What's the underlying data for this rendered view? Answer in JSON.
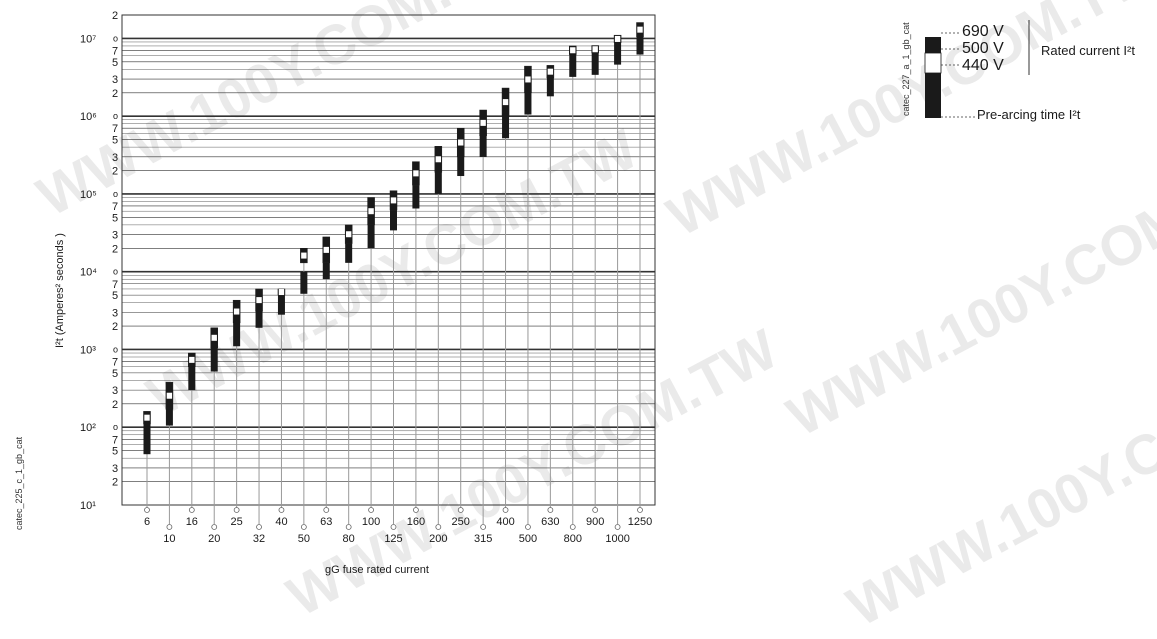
{
  "watermark": "WWW.100Y.COM.TW",
  "chart_code": "catec_225_c_1_gb_cat",
  "legend_code": "catec_227_a_1_gb_cat",
  "colors": {
    "bar_fill": "#1a1a1a",
    "bar_gap": "#ffffff",
    "grid": "#333333",
    "stem": "#999999"
  },
  "legend": {
    "v690": "690 V",
    "v500": "500 V",
    "v440": "440 V",
    "rated": "Rated current I²t",
    "prearc": "Pre-arcing time I²t"
  },
  "chart_data": {
    "type": "bar",
    "xlabel": "gG fuse rated current",
    "ylabel": "I²t (Amperes² seconds )",
    "yscale": "log",
    "ylim": [
      10,
      20000000
    ],
    "y_decade_labels": [
      "10¹",
      "10²",
      "10³",
      "10⁴",
      "10⁵",
      "10⁶",
      "10⁷"
    ],
    "y_minor_labels": [
      "2",
      "3",
      "5",
      "7"
    ],
    "categories": [
      "6",
      "10",
      "16",
      "20",
      "25",
      "32",
      "40",
      "50",
      "63",
      "80",
      "100",
      "125",
      "160",
      "200",
      "250",
      "315",
      "400",
      "500",
      "630",
      "800",
      "900",
      "1000",
      "1250"
    ],
    "series": [
      {
        "name": "Pre-arcing time I²t",
        "values": [
          [
            45,
            110
          ],
          [
            105,
            300
          ],
          [
            300,
            650
          ],
          [
            520,
            1100
          ],
          [
            1100,
            2300
          ],
          [
            1900,
            3200
          ],
          [
            2800,
            5100
          ],
          [
            5200,
            10000
          ],
          [
            8000,
            13000
          ],
          [
            13000,
            23000
          ],
          [
            20000,
            40000
          ],
          [
            34000,
            62000
          ],
          [
            65000,
            130000
          ],
          [
            100000,
            190000
          ],
          [
            170000,
            310000
          ],
          [
            300000,
            600000
          ],
          [
            520000,
            1050000
          ],
          [
            1050000,
            2000000
          ],
          [
            1800000,
            3200000
          ],
          [
            3200000,
            6500000
          ],
          [
            3400000,
            6800000
          ],
          [
            4600000,
            8800000
          ],
          [
            6200000,
            10500000
          ]
        ]
      },
      {
        "name": "Rated current I²t",
        "values": [
          [
            110,
            160
          ],
          [
            170,
            380
          ],
          [
            600,
            900
          ],
          [
            1050,
            1900
          ],
          [
            2200,
            4300
          ],
          [
            3100,
            6000
          ],
          [
            5000,
            6000
          ],
          [
            13000,
            20000
          ],
          [
            13000,
            28000
          ],
          [
            23000,
            40000
          ],
          [
            40000,
            90000
          ],
          [
            62000,
            110000
          ],
          [
            130000,
            260000
          ],
          [
            190000,
            410000
          ],
          [
            300000,
            700000
          ],
          [
            560000,
            1200000
          ],
          [
            1000000,
            2300000
          ],
          [
            2000000,
            4400000
          ],
          [
            3100000,
            4500000
          ],
          [
            6200000,
            8000000
          ],
          [
            6500000,
            8100000
          ],
          [
            8800000,
            11000000
          ],
          [
            10500000,
            16000000
          ]
        ]
      }
    ]
  }
}
